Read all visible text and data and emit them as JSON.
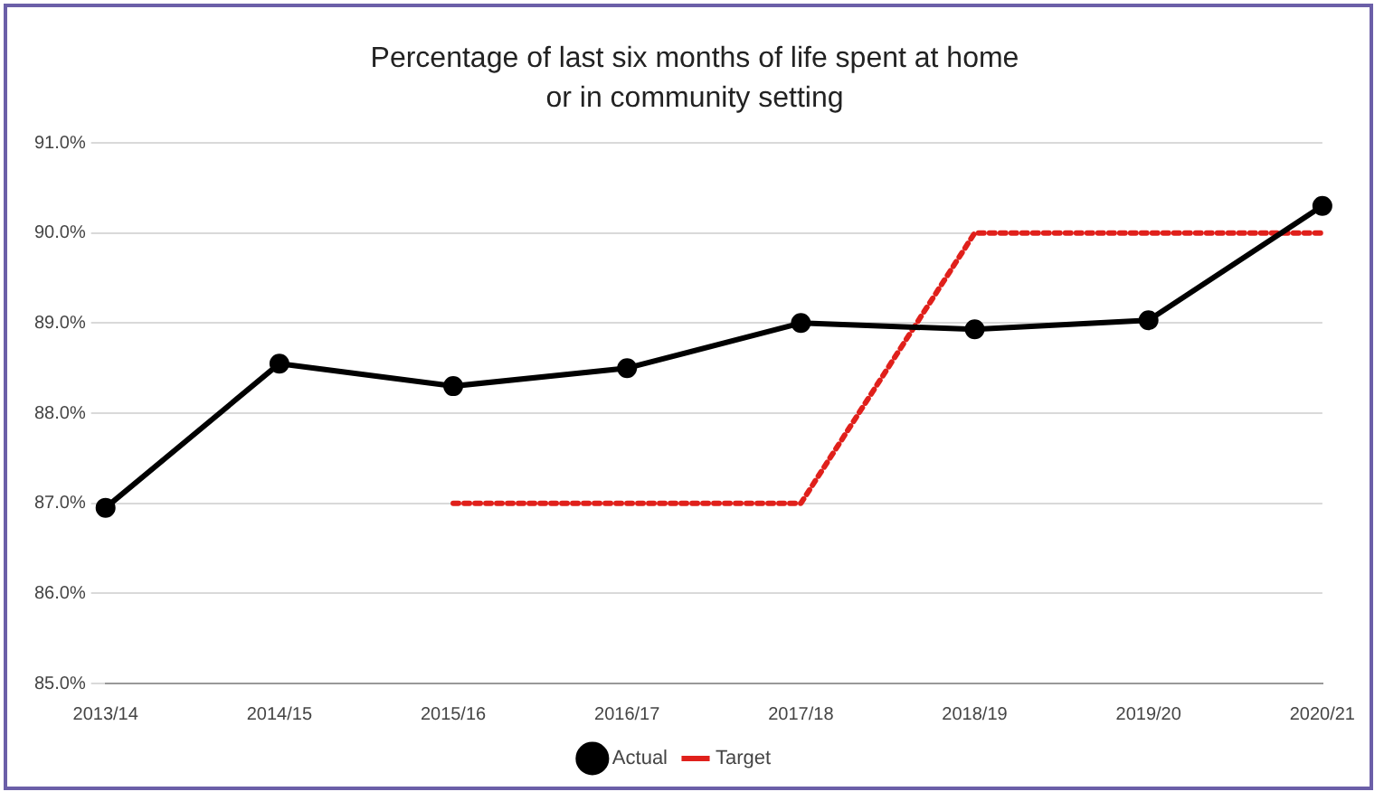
{
  "chart_data": {
    "type": "line",
    "title": "Percentage of last six months of life spent at home or in community setting",
    "categories": [
      "2013/14",
      "2014/15",
      "2015/16",
      "2016/17",
      "2017/18",
      "2018/19",
      "2019/20",
      "2020/21"
    ],
    "series": [
      {
        "name": "Actual",
        "color": "#000000",
        "marker": "circle",
        "line_style": "solid",
        "values": [
          86.95,
          88.55,
          88.3,
          88.5,
          89.0,
          88.93,
          89.03,
          90.3
        ]
      },
      {
        "name": "Target",
        "color": "#e0201b",
        "marker": "none",
        "line_style": "dotted",
        "values": [
          null,
          null,
          87.0,
          87.0,
          87.0,
          90.0,
          90.0,
          90.0
        ]
      }
    ],
    "ylim": [
      85,
      91
    ],
    "yticks": [
      {
        "value": 85,
        "label": "85.0%"
      },
      {
        "value": 86,
        "label": "86.0%"
      },
      {
        "value": 87,
        "label": "87.0%"
      },
      {
        "value": 88,
        "label": "88.0%"
      },
      {
        "value": 89,
        "label": "89.0%"
      },
      {
        "value": 90,
        "label": "90.0%"
      },
      {
        "value": 91,
        "label": "91.0%"
      }
    ],
    "grid": "y",
    "legend": "bottom"
  }
}
